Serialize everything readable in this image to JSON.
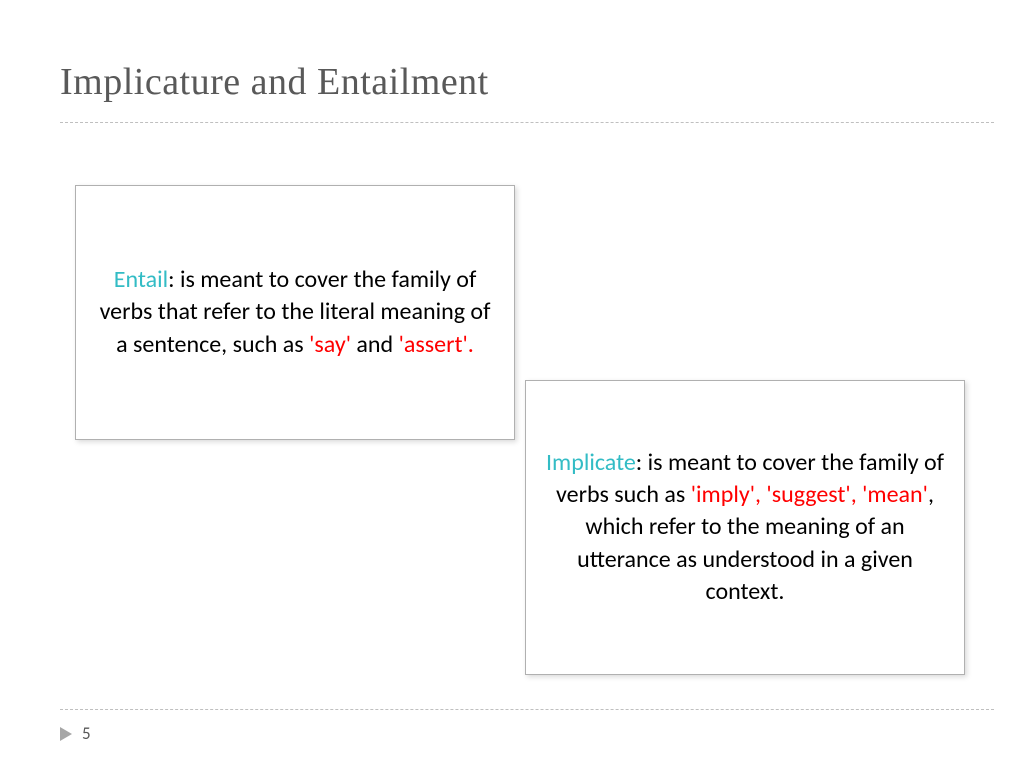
{
  "title": "Implicature and Entailment",
  "box1": {
    "term": "Entail",
    "text1": ": is meant to cover the family of verbs that refer to the literal meaning of a sentence, such as ",
    "kw1": "'say'",
    "mid": " and ",
    "kw2": "'assert'.",
    "term_color": "#33bcc5",
    "keyword_color": "#ff0000"
  },
  "box2": {
    "term": "Implicate",
    "text1": ":  is meant to cover the family of verbs such as ",
    "kw1": "'imply', 'suggest',  'mean'",
    "text2": ", which refer to the meaning of an utterance as understood in a given context.",
    "term_color": "#33bcc5",
    "keyword_color": "#ff0000"
  },
  "page_number": "5",
  "colors": {
    "title": "#595959",
    "divider": "#bfbfbf",
    "box_border": "#b0b0b0",
    "text": "#000000",
    "arrow": "#a6a6a6"
  }
}
